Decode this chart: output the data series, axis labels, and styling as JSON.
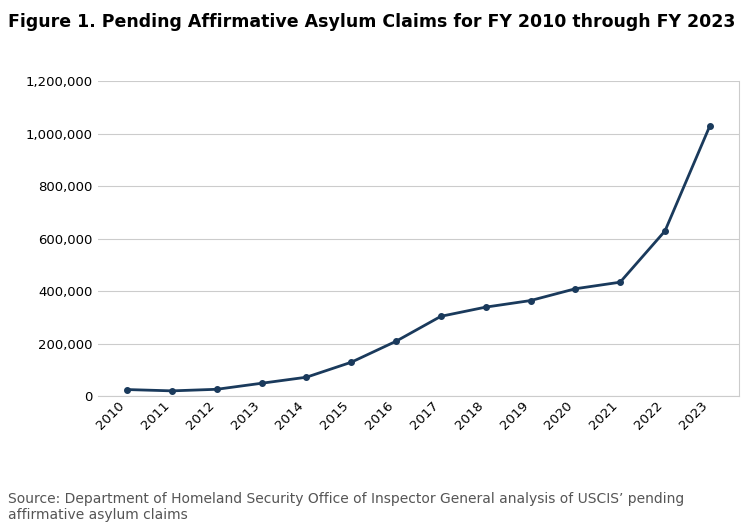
{
  "title": "Figure 1. Pending Affirmative Asylum Claims for FY 2010 through FY 2023",
  "years": [
    2010,
    2011,
    2012,
    2013,
    2014,
    2015,
    2016,
    2017,
    2018,
    2019,
    2020,
    2021,
    2022,
    2023
  ],
  "values": [
    26000,
    21000,
    27000,
    50000,
    73000,
    130000,
    210000,
    305000,
    340000,
    365000,
    410000,
    435000,
    630000,
    1030000
  ],
  "line_color": "#1a3a5c",
  "marker": "o",
  "marker_size": 4,
  "ylim": [
    0,
    1200000
  ],
  "yticks": [
    0,
    200000,
    400000,
    600000,
    800000,
    1000000,
    1200000
  ],
  "background_color": "#ffffff",
  "plot_bg_color": "#ffffff",
  "grid_color": "#cccccc",
  "box_color": "#cccccc",
  "source_text": "Source: Department of Homeland Security Office of Inspector General analysis of USCIS’ pending\naffirmative asylum claims",
  "title_fontsize": 12.5,
  "tick_fontsize": 9.5,
  "source_fontsize": 10,
  "source_color": "#555555"
}
